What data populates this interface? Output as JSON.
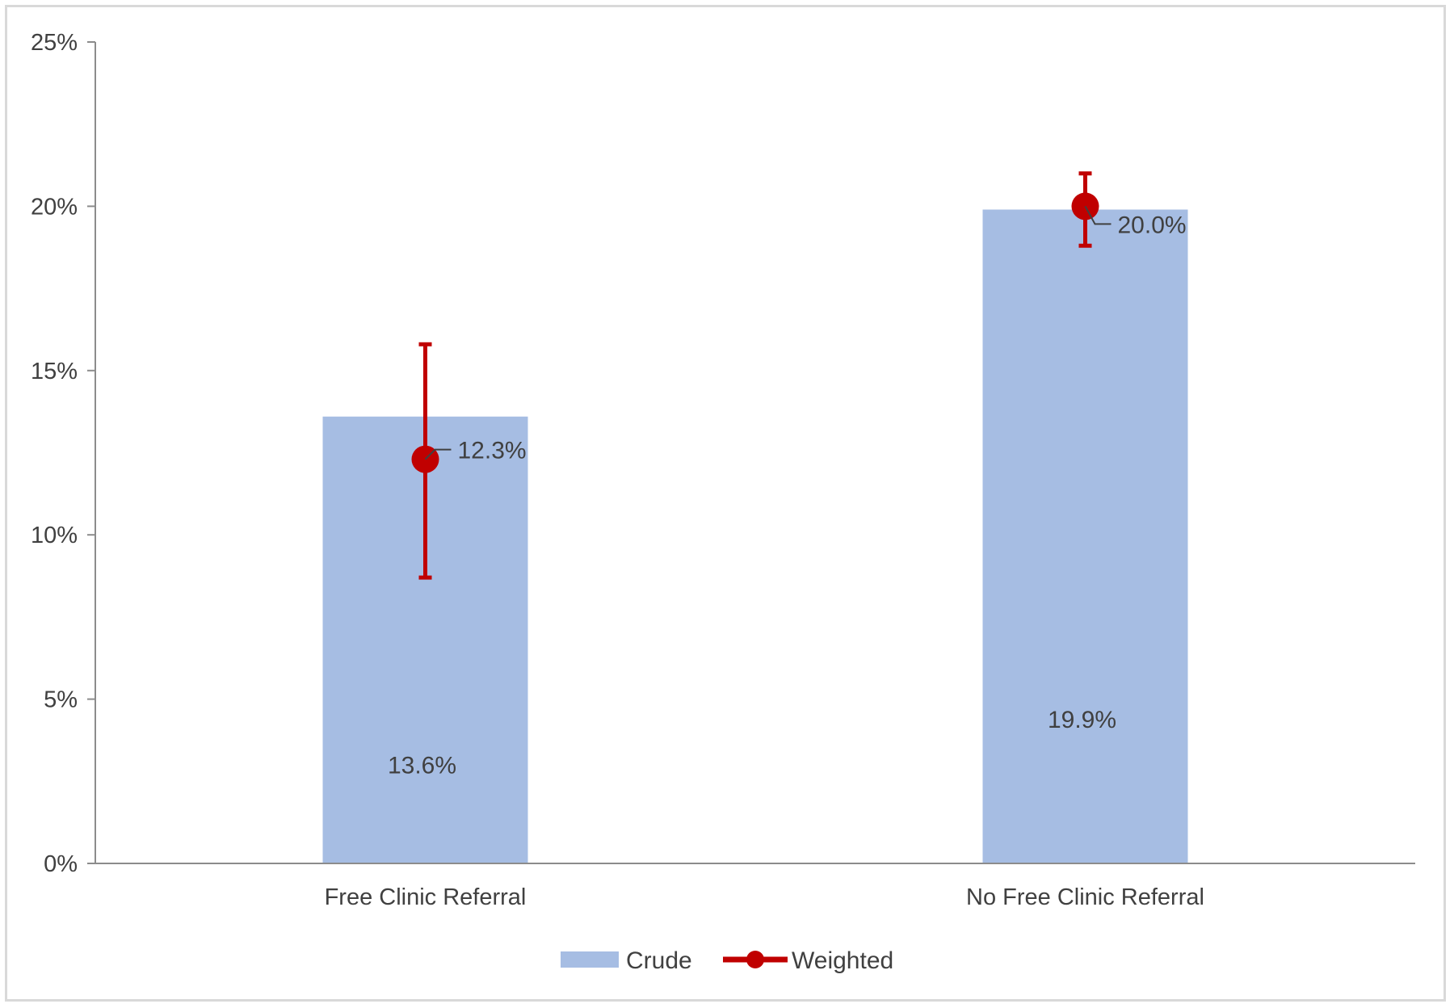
{
  "chart_data": {
    "type": "bar",
    "categories": [
      "Free Clinic Referral",
      "No Free Clinic Referral"
    ],
    "series": [
      {
        "name": "Crude",
        "kind": "bar",
        "color": "#a6bde3",
        "values": [
          13.6,
          19.9
        ],
        "labels": [
          "13.6%",
          "19.9%"
        ]
      },
      {
        "name": "Weighted",
        "kind": "point-with-error",
        "color": "#c00000",
        "values": [
          12.3,
          20.0
        ],
        "error_low": [
          8.7,
          18.8
        ],
        "error_high": [
          15.8,
          21.0
        ],
        "labels": [
          "12.3%",
          "20.0%"
        ]
      }
    ],
    "ylim": [
      0,
      25
    ],
    "yticks": [
      0,
      5,
      10,
      15,
      20,
      25
    ],
    "ytick_labels": [
      "0%",
      "5%",
      "10%",
      "15%",
      "20%",
      "25%"
    ],
    "grid": false,
    "legend_position": "bottom",
    "title": "",
    "xlabel": "",
    "ylabel": ""
  }
}
